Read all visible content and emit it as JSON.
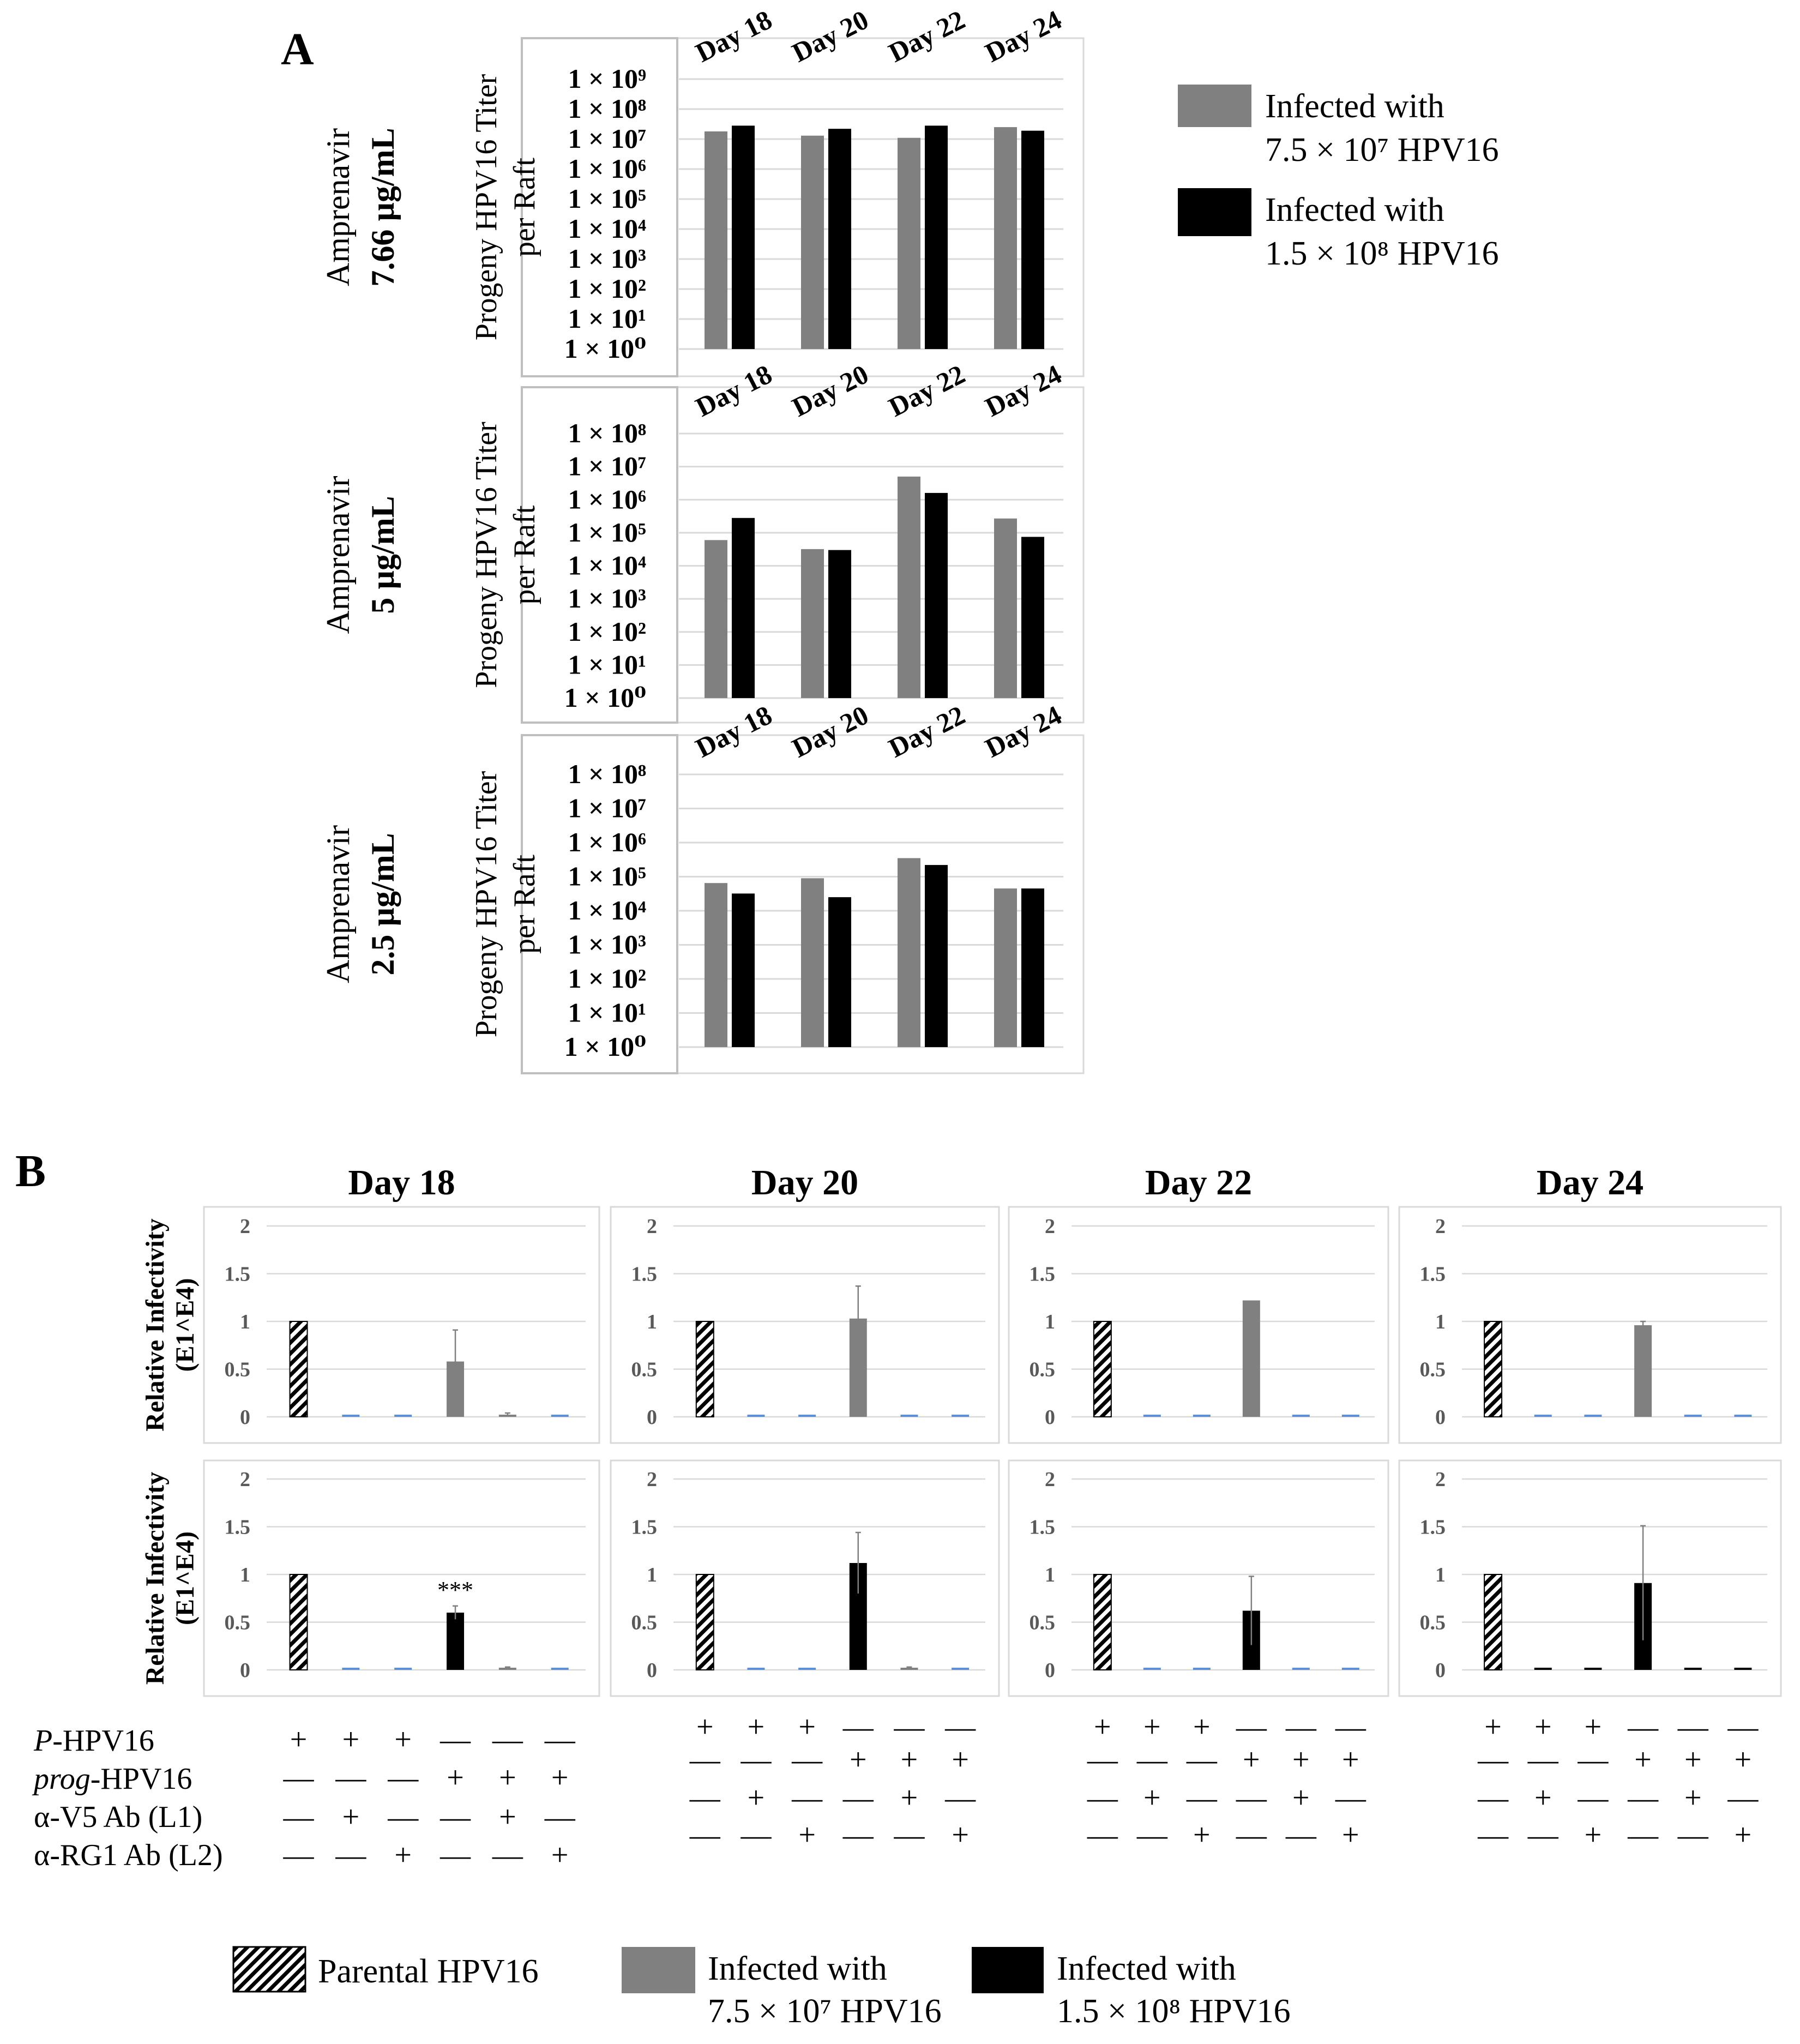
{
  "colors": {
    "gray": "#808080",
    "black": "#000000",
    "blue_baseline": "#5b8fd6",
    "grid": "#d9d9d9",
    "axis_text": "#595959"
  },
  "panel_a": {
    "label": "A",
    "ytitle_line1": "Progeny HPV16 Titer",
    "ytitle_line2": "per Raft",
    "categories": [
      "Day 18",
      "Day 20",
      "Day 22",
      "Day 24"
    ],
    "legend": [
      {
        "swatch": "gray",
        "line1": "Infected with",
        "line2": "7.5 × 10⁷ HPV16"
      },
      {
        "swatch": "black",
        "line1": "Infected with",
        "line2": "1.5 × 10⁸ HPV16"
      }
    ]
  },
  "panel_b": {
    "label": "B",
    "ytitle_line1": "Relative Infectivity",
    "ytitle_line2": "(E1^E4)",
    "significance": "***",
    "row_labels": [
      {
        "italic": "P",
        "rest": "-HPV16"
      },
      {
        "italic": "prog",
        "rest": "-HPV16"
      },
      {
        "italic": "",
        "rest": "α-V5 Ab (L1)"
      },
      {
        "italic": "",
        "rest": "α-RG1 Ab (L2)"
      }
    ],
    "signs": [
      [
        "+",
        "+",
        "+",
        "—",
        "—",
        "—"
      ],
      [
        "—",
        "—",
        "—",
        "+",
        "+",
        "+"
      ],
      [
        "—",
        "+",
        "—",
        "—",
        "+",
        "—"
      ],
      [
        "—",
        "—",
        "+",
        "—",
        "—",
        "+"
      ]
    ],
    "legend": [
      {
        "swatch": "hatch",
        "line1": "Parental HPV16",
        "line2": ""
      },
      {
        "swatch": "gray",
        "line1": "Infected with",
        "line2": "7.5 × 10⁷ HPV16"
      },
      {
        "swatch": "black",
        "line1": "Infected with",
        "line2": "1.5 × 10⁸ HPV16"
      }
    ]
  },
  "chart_data": [
    {
      "type": "bar",
      "panel": "A1",
      "title_line1": "Amprenavir",
      "title_line2": "7.66 µg/mL",
      "scale": "log10",
      "ylim": [
        1,
        1000000000
      ],
      "ytick_labels": [
        "1 × 10⁹",
        "1 × 10⁸",
        "1 × 10⁷",
        "1 × 10⁶",
        "1 × 10⁵",
        "1 × 10⁴",
        "1 × 10³",
        "1 × 10²",
        "1 × 10¹",
        "1 × 10⁰"
      ],
      "categories": [
        "Day 18",
        "Day 20",
        "Day 22",
        "Day 24"
      ],
      "series": [
        {
          "name": "Infected with 7.5 × 10⁷ HPV16",
          "color": "gray",
          "values": [
            18000000,
            13000000,
            11000000,
            25000000
          ]
        },
        {
          "name": "Infected with 1.5 × 10⁸ HPV16",
          "color": "black",
          "values": [
            28000000,
            22000000,
            28000000,
            19000000
          ]
        }
      ]
    },
    {
      "type": "bar",
      "panel": "A2",
      "title_line1": "Amprenavir",
      "title_line2": "5 µg/mL",
      "scale": "log10",
      "ylim": [
        1,
        100000000
      ],
      "ytick_labels": [
        "1 × 10⁸",
        "1 × 10⁷",
        "1 × 10⁶",
        "1 × 10⁵",
        "1 × 10⁴",
        "1 × 10³",
        "1 × 10²",
        "1 × 10¹",
        "1 × 10⁰"
      ],
      "categories": [
        "Day 18",
        "Day 20",
        "Day 22",
        "Day 24"
      ],
      "series": [
        {
          "name": "Infected with 7.5 × 10⁷ HPV16",
          "color": "gray",
          "values": [
            60000,
            32000,
            5000000,
            270000
          ]
        },
        {
          "name": "Infected with 1.5 × 10⁸ HPV16",
          "color": "black",
          "values": [
            280000,
            30000,
            1600000,
            75000
          ]
        }
      ]
    },
    {
      "type": "bar",
      "panel": "A3",
      "title_line1": "Amprenavir",
      "title_line2": "2.5 µg/mL",
      "scale": "log10",
      "ylim": [
        1,
        100000000
      ],
      "ytick_labels": [
        "1 × 10⁸",
        "1 × 10⁷",
        "1 × 10⁶",
        "1 × 10⁵",
        "1 × 10⁴",
        "1 × 10³",
        "1 × 10²",
        "1 × 10¹",
        "1 × 10⁰"
      ],
      "categories": [
        "Day 18",
        "Day 20",
        "Day 22",
        "Day 24"
      ],
      "series": [
        {
          "name": "Infected with 7.5 × 10⁷ HPV16",
          "color": "gray",
          "values": [
            65000,
            90000,
            350000,
            45000
          ]
        },
        {
          "name": "Infected with 1.5 × 10⁸ HPV16",
          "color": "black",
          "values": [
            32000,
            25000,
            220000,
            45000
          ]
        }
      ]
    },
    {
      "type": "bar",
      "panel": "B",
      "title": "Day 18",
      "row": 1,
      "ylim": [
        0,
        2
      ],
      "yticks": [
        0,
        0.5,
        1,
        1.5,
        2
      ],
      "values": [
        1,
        0,
        0,
        0.58,
        0.02,
        0
      ],
      "errors": [
        0,
        0,
        0,
        0.33,
        0.02,
        0
      ],
      "fills": [
        "hatch",
        "blue",
        "blue",
        "gray",
        "gray",
        "blue"
      ]
    },
    {
      "type": "bar",
      "panel": "B",
      "title": "Day 20",
      "row": 1,
      "ylim": [
        0,
        2
      ],
      "yticks": [
        0,
        0.5,
        1,
        1.5,
        2
      ],
      "values": [
        1,
        0,
        0,
        1.03,
        0,
        0
      ],
      "errors": [
        0,
        0,
        0,
        0.34,
        0,
        0
      ],
      "fills": [
        "hatch",
        "blue",
        "blue",
        "gray",
        "blue",
        "blue"
      ]
    },
    {
      "type": "bar",
      "panel": "B",
      "title": "Day 22",
      "row": 1,
      "ylim": [
        0,
        2
      ],
      "yticks": [
        0,
        0.5,
        1,
        1.5,
        2
      ],
      "values": [
        1,
        0,
        0,
        1.22,
        0,
        0
      ],
      "errors": [
        0,
        0,
        0,
        0,
        0,
        0
      ],
      "fills": [
        "hatch",
        "blue",
        "blue",
        "gray",
        "blue",
        "blue"
      ]
    },
    {
      "type": "bar",
      "panel": "B",
      "title": "Day 24",
      "row": 1,
      "ylim": [
        0,
        2
      ],
      "yticks": [
        0,
        0.5,
        1,
        1.5,
        2
      ],
      "values": [
        1,
        0,
        0,
        0.96,
        0,
        0
      ],
      "errors": [
        0,
        0,
        0,
        0.04,
        0,
        0
      ],
      "fills": [
        "hatch",
        "blue",
        "blue",
        "gray",
        "blue",
        "blue"
      ]
    },
    {
      "type": "bar",
      "panel": "B",
      "title": "Day 18",
      "row": 2,
      "ylim": [
        0,
        2
      ],
      "yticks": [
        0,
        0.5,
        1,
        1.5,
        2
      ],
      "values": [
        1,
        0,
        0,
        0.6,
        0.02,
        0
      ],
      "errors": [
        0,
        0,
        0,
        0.07,
        0.01,
        0
      ],
      "fills": [
        "hatch",
        "blue",
        "blue",
        "black",
        "gray",
        "blue"
      ],
      "significance_bar": 3
    },
    {
      "type": "bar",
      "panel": "B",
      "title": "Day 20",
      "row": 2,
      "ylim": [
        0,
        2
      ],
      "yticks": [
        0,
        0.5,
        1,
        1.5,
        2
      ],
      "values": [
        1,
        0,
        0,
        1.12,
        0.02,
        0
      ],
      "errors": [
        0,
        0,
        0,
        0.32,
        0.01,
        0
      ],
      "fills": [
        "hatch",
        "blue",
        "blue",
        "black",
        "gray",
        "blue"
      ]
    },
    {
      "type": "bar",
      "panel": "B",
      "title": "Day 22",
      "row": 2,
      "ylim": [
        0,
        2
      ],
      "yticks": [
        0,
        0.5,
        1,
        1.5,
        2
      ],
      "values": [
        1,
        0,
        0,
        0.62,
        0.01,
        0
      ],
      "errors": [
        0,
        0,
        0,
        0.36,
        0,
        0
      ],
      "fills": [
        "hatch",
        "blue",
        "blue",
        "black",
        "blue",
        "blue"
      ]
    },
    {
      "type": "bar",
      "panel": "B",
      "title": "Day 24",
      "row": 2,
      "ylim": [
        0,
        2
      ],
      "yticks": [
        0,
        0.5,
        1,
        1.5,
        2
      ],
      "values": [
        1,
        0,
        0,
        0.91,
        0,
        0
      ],
      "errors": [
        0,
        0,
        0,
        0.6,
        0,
        0
      ],
      "fills": [
        "hatch",
        "black",
        "black",
        "black",
        "black",
        "black"
      ]
    }
  ]
}
